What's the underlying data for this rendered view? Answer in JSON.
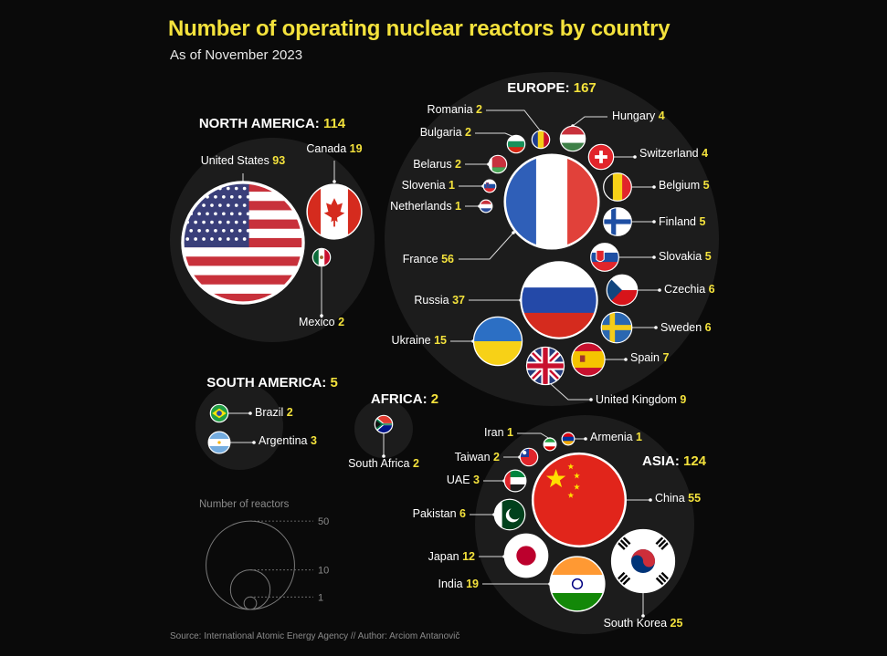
{
  "title": "Number of operating nuclear reactors by country",
  "subtitle": "As of November 2023",
  "source": "Source: International Atomic Energy Agency // Author: Arciom Antanovič",
  "colors": {
    "title": "#f4e23c",
    "value": "#f4e23c",
    "region_bubble": "#1c1c1c",
    "background": "#0a0a0a"
  },
  "chart_data": {
    "type": "bubble",
    "title": "Number of operating nuclear reactors by country",
    "subtitle": "As of November 2023",
    "regions": [
      {
        "name": "NORTH AMERICA",
        "total": 114,
        "countries": [
          {
            "name": "United States",
            "value": 93
          },
          {
            "name": "Canada",
            "value": 19
          },
          {
            "name": "Mexico",
            "value": 2
          }
        ]
      },
      {
        "name": "EUROPE",
        "total": 167,
        "countries": [
          {
            "name": "Romania",
            "value": 2
          },
          {
            "name": "Hungary",
            "value": 4
          },
          {
            "name": "Bulgaria",
            "value": 2
          },
          {
            "name": "Switzerland",
            "value": 4
          },
          {
            "name": "Belarus",
            "value": 2
          },
          {
            "name": "Belgium",
            "value": 5
          },
          {
            "name": "Slovenia",
            "value": 1
          },
          {
            "name": "Netherlands",
            "value": 1
          },
          {
            "name": "Finland",
            "value": 5
          },
          {
            "name": "France",
            "value": 56
          },
          {
            "name": "Slovakia",
            "value": 5
          },
          {
            "name": "Czechia",
            "value": 6
          },
          {
            "name": "Russia",
            "value": 37
          },
          {
            "name": "Sweden",
            "value": 6
          },
          {
            "name": "Ukraine",
            "value": 15
          },
          {
            "name": "Spain",
            "value": 7
          },
          {
            "name": "United Kingdom",
            "value": 9
          }
        ]
      },
      {
        "name": "SOUTH AMERICA",
        "total": 5,
        "countries": [
          {
            "name": "Brazil",
            "value": 2
          },
          {
            "name": "Argentina",
            "value": 3
          }
        ]
      },
      {
        "name": "AFRICA",
        "total": 2,
        "countries": [
          {
            "name": "South Africa",
            "value": 2
          }
        ]
      },
      {
        "name": "ASIA",
        "total": 124,
        "countries": [
          {
            "name": "Iran",
            "value": 1
          },
          {
            "name": "Armenia",
            "value": 1
          },
          {
            "name": "Taiwan",
            "value": 2
          },
          {
            "name": "UAE",
            "value": 3
          },
          {
            "name": "China",
            "value": 55
          },
          {
            "name": "Pakistan",
            "value": 6
          },
          {
            "name": "Japan",
            "value": 12
          },
          {
            "name": "India",
            "value": 19
          },
          {
            "name": "South Korea",
            "value": 25
          }
        ]
      }
    ],
    "size_legend": {
      "title": "Number of reactors",
      "values": [
        50,
        10,
        1
      ]
    }
  }
}
